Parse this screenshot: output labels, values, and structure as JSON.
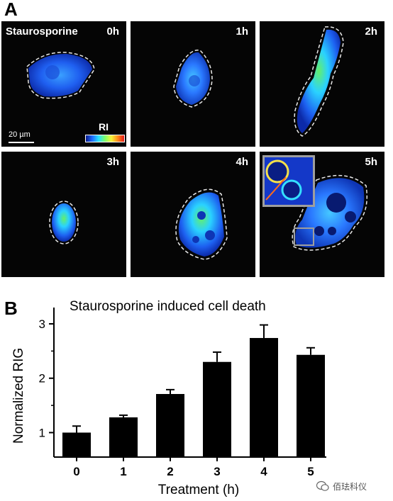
{
  "panel_a": {
    "letter": "A",
    "drug_label": "Staurosporine",
    "scale_bar_label": "20 µm",
    "colorbar_label": "RI",
    "time_labels": [
      "0h",
      "1h",
      "2h",
      "3h",
      "4h",
      "5h"
    ]
  },
  "panel_b": {
    "letter": "B"
  },
  "watermark": "佰珐科仪",
  "chart_data": {
    "type": "bar",
    "title": "Staurosporine induced cell death",
    "xlabel": "Treatment (h)",
    "ylabel": "Normalized RIG",
    "categories": [
      "0",
      "1",
      "2",
      "3",
      "4",
      "5"
    ],
    "values": [
      1.0,
      1.28,
      1.71,
      2.3,
      2.74,
      2.43
    ],
    "errors": [
      0.12,
      0.04,
      0.08,
      0.18,
      0.24,
      0.13
    ],
    "yticks": [
      "1",
      "2",
      "3"
    ],
    "ylim": [
      0.55,
      3.3
    ],
    "grid": false,
    "bar_color": "#000000"
  }
}
